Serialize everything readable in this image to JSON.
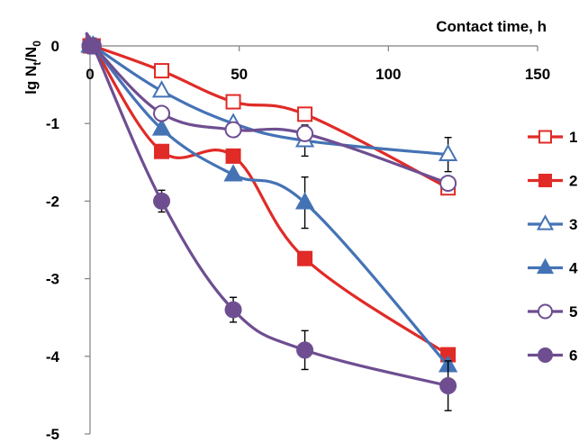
{
  "chart_data": {
    "type": "line",
    "xlabel": "Contact time, h",
    "ylabel": "lg N",
    "ylabel_sub1": "t",
    "ylabel_mid": "/N",
    "ylabel_sub2": "0",
    "xlim": [
      0,
      150
    ],
    "ylim": [
      -5,
      0
    ],
    "x_ticks": [
      0,
      50,
      100,
      150
    ],
    "y_ticks": [
      0,
      -1,
      -2,
      -3,
      -4,
      -5
    ],
    "x_tick_labels": [
      "0",
      "50",
      "100",
      "150"
    ],
    "y_tick_labels": [
      "0",
      "-1",
      "-2",
      "-3",
      "-4",
      "-5"
    ],
    "x_axis_position": "top",
    "grid": false,
    "legend_position": "right",
    "series": [
      {
        "name": "1",
        "color": "#e02b27",
        "marker": "square",
        "filled": false,
        "x": [
          0,
          1,
          24,
          48,
          72,
          120
        ],
        "y": [
          0,
          0,
          -0.32,
          -0.72,
          -0.88,
          -1.83
        ],
        "yerr": [
          0,
          0,
          0,
          0,
          0,
          0
        ]
      },
      {
        "name": "2",
        "color": "#e02b27",
        "marker": "square",
        "filled": true,
        "x": [
          0,
          1,
          24,
          48,
          72,
          120
        ],
        "y": [
          0,
          0,
          -1.36,
          -1.42,
          -2.74,
          -3.98
        ],
        "yerr": [
          0,
          0,
          0,
          0,
          0,
          0
        ]
      },
      {
        "name": "3",
        "color": "#4473b5",
        "marker": "triangle",
        "filled": false,
        "x": [
          0,
          1,
          24,
          48,
          72,
          120
        ],
        "y": [
          0,
          0,
          -0.58,
          -1.0,
          -1.22,
          -1.4
        ],
        "yerr": [
          0,
          0,
          0,
          0,
          0.2,
          0.22
        ]
      },
      {
        "name": "4",
        "color": "#4473b5",
        "marker": "triangle",
        "filled": true,
        "x": [
          0,
          1,
          24,
          48,
          72,
          120
        ],
        "y": [
          0,
          0,
          -1.07,
          -1.66,
          -2.02,
          -4.12
        ],
        "yerr": [
          0,
          0,
          0,
          0,
          0.33,
          0
        ]
      },
      {
        "name": "5",
        "color": "#6e4e91",
        "marker": "circle",
        "filled": false,
        "x": [
          0,
          1,
          24,
          48,
          72,
          120
        ],
        "y": [
          0,
          0,
          -0.87,
          -1.08,
          -1.13,
          -1.77
        ],
        "yerr": [
          0,
          0,
          0,
          0,
          0,
          0
        ]
      },
      {
        "name": "6",
        "color": "#6e4e91",
        "marker": "circle",
        "filled": true,
        "x": [
          0,
          1,
          24,
          48,
          72,
          120
        ],
        "y": [
          0,
          0,
          -2.0,
          -3.4,
          -3.92,
          -4.38
        ],
        "yerr": [
          0,
          0.1,
          0.14,
          0.16,
          0.25,
          0.32
        ]
      }
    ]
  }
}
